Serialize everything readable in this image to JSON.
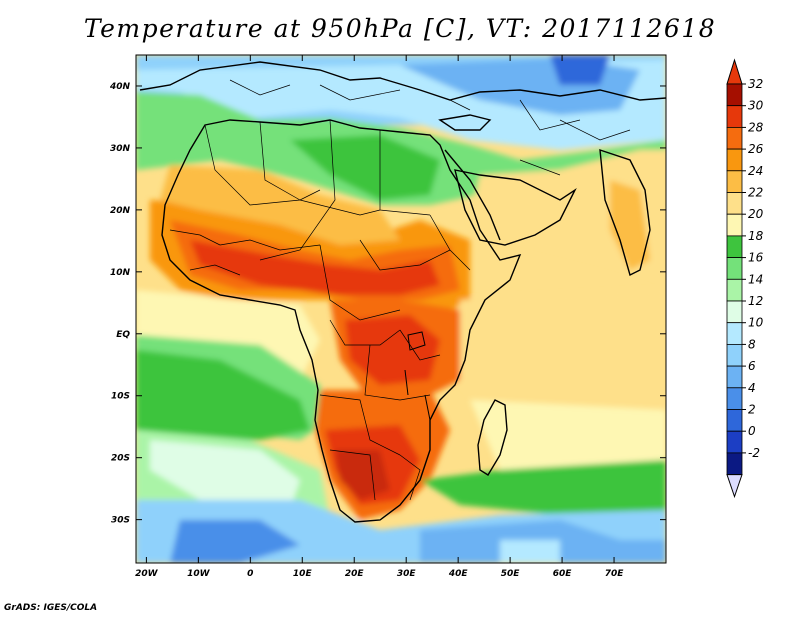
{
  "title": "Temperature at 950hPa [C], VT: 2017112618",
  "credit": "GrADS: IGES/COLA",
  "map": {
    "projection": "lat-lon",
    "lon_range": [
      -22,
      80
    ],
    "lat_range": [
      -37,
      45
    ],
    "lon_labels": [
      "20W",
      "10W",
      "0",
      "10E",
      "20E",
      "30E",
      "40E",
      "50E",
      "60E",
      "70E"
    ],
    "lat_labels": [
      "40N",
      "30N",
      "20N",
      "10N",
      "EQ",
      "10S",
      "20S",
      "30S"
    ]
  },
  "colorbar": {
    "labels": [
      "32",
      "30",
      "28",
      "26",
      "24",
      "22",
      "20",
      "18",
      "16",
      "14",
      "12",
      "10",
      "8",
      "6",
      "4",
      "2",
      "0",
      "-2"
    ],
    "colors": [
      "#a50f00",
      "#e6380b",
      "#f56c0f",
      "#f9970f",
      "#fcbd45",
      "#fee08a",
      "#fef7b3",
      "#3ec43e",
      "#74e17a",
      "#aaf4a7",
      "#dffde6",
      "#b4e9ff",
      "#8fd1fb",
      "#6cb2f3",
      "#4a8fe9",
      "#2e67da",
      "#1c3ec4",
      "#0b1983"
    ],
    "over_color": "#e6380b",
    "under_color": "#dcdcff"
  }
}
